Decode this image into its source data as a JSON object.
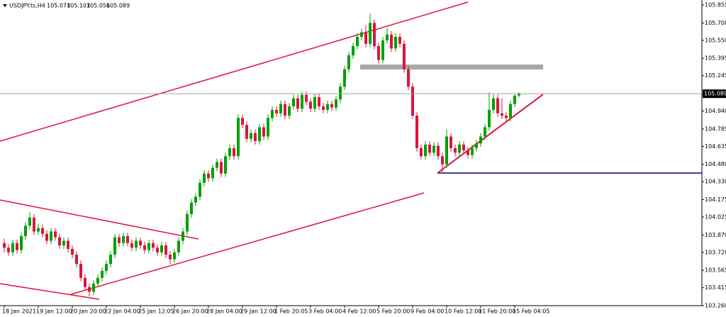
{
  "chart_data": {
    "type": "candlestick",
    "symbol": "USDJPY.ts,H4",
    "up_color": "#00a000",
    "down_color": "#dc143c",
    "price_line_color": "#a0a0a0",
    "ylim": [
      103.26,
      105.898
    ],
    "yticks": [
      105.855,
      {
        "value": 105.7,
        "label": "105.700"
      },
      {
        "value": 105.55,
        "label": "105.550"
      },
      105.395,
      105.245,
      {
        "value": 104.94,
        "label": "104.940"
      },
      104.785,
      104.635,
      {
        "value": 104.48,
        "label": "104.480"
      },
      {
        "value": 104.33,
        "label": "104.330"
      },
      104.175,
      104.025,
      {
        "value": 103.87,
        "label": "103.870"
      },
      {
        "value": 103.72,
        "label": "103.720"
      },
      103.565,
      103.415,
      {
        "value": 103.26,
        "label": "103.260"
      }
    ],
    "categories": [
      "18 Jan 2021",
      null,
      null,
      null,
      null,
      null,
      null,
      null,
      "19 Jan 12:00",
      null,
      null,
      null,
      null,
      null,
      null,
      null,
      "20 Jan 20:00",
      null,
      null,
      null,
      null,
      null,
      null,
      null,
      "22 Jan 04:00",
      null,
      null,
      null,
      null,
      null,
      null,
      null,
      "25 Jan 12:05",
      null,
      null,
      null,
      null,
      null,
      null,
      null,
      "26 Jan 20:00",
      null,
      null,
      null,
      null,
      null,
      null,
      null,
      "28 Jan 04:00",
      null,
      null,
      null,
      null,
      null,
      null,
      null,
      "29 Jan 12:00",
      null,
      null,
      null,
      null,
      null,
      null,
      null,
      "1 Feb 20:05",
      null,
      null,
      null,
      null,
      null,
      null,
      null,
      "3 Feb 04:00",
      null,
      null,
      null,
      null,
      null,
      null,
      null,
      "4 Feb 12:00",
      null,
      null,
      null,
      null,
      null,
      null,
      null,
      "5 Feb 20:00",
      null,
      null,
      null,
      null,
      null,
      null,
      null,
      "9 Feb 04:00",
      null,
      null,
      null,
      null,
      null,
      null,
      null,
      "10 Feb 12:00",
      null,
      null,
      null,
      null,
      null,
      null,
      null,
      "11 Feb 20:00",
      null,
      null,
      null,
      null,
      null,
      null,
      null,
      "15 Feb 04:05",
      null
    ],
    "ohlc": [
      [
        103.8,
        103.84,
        103.72,
        103.76
      ],
      [
        103.76,
        103.79,
        103.69,
        103.72
      ],
      [
        103.72,
        103.83,
        103.69,
        103.8
      ],
      [
        103.8,
        103.83,
        103.71,
        103.74
      ],
      [
        103.74,
        103.89,
        103.71,
        103.86
      ],
      [
        103.86,
        103.98,
        103.83,
        103.95
      ],
      [
        103.95,
        104.07,
        103.92,
        104.02
      ],
      [
        104.02,
        104.05,
        103.87,
        103.9
      ],
      [
        103.9,
        103.97,
        103.87,
        103.93
      ],
      [
        103.93,
        103.96,
        103.85,
        103.88
      ],
      [
        103.88,
        103.91,
        103.79,
        103.82
      ],
      [
        103.82,
        103.93,
        103.79,
        103.9
      ],
      [
        103.9,
        103.93,
        103.82,
        103.85
      ],
      [
        103.85,
        103.88,
        103.75,
        103.78
      ],
      [
        103.78,
        103.85,
        103.75,
        103.82
      ],
      [
        103.82,
        103.85,
        103.72,
        103.75
      ],
      [
        103.75,
        103.78,
        103.67,
        103.7
      ],
      [
        103.7,
        103.73,
        103.59,
        103.62
      ],
      [
        103.62,
        103.65,
        103.47,
        103.5
      ],
      [
        103.5,
        103.53,
        103.39,
        103.42
      ],
      [
        103.42,
        103.45,
        103.34,
        103.38
      ],
      [
        103.38,
        103.48,
        103.35,
        103.45
      ],
      [
        103.45,
        103.53,
        103.42,
        103.5
      ],
      [
        103.5,
        103.59,
        103.47,
        103.56
      ],
      [
        103.56,
        103.65,
        103.53,
        103.62
      ],
      [
        103.62,
        103.73,
        103.59,
        103.7
      ],
      [
        103.7,
        103.88,
        103.67,
        103.85
      ],
      [
        103.85,
        103.88,
        103.77,
        103.8
      ],
      [
        103.8,
        103.89,
        103.77,
        103.86
      ],
      [
        103.86,
        103.89,
        103.77,
        103.8
      ],
      [
        103.8,
        103.83,
        103.73,
        103.76
      ],
      [
        103.76,
        103.85,
        103.73,
        103.82
      ],
      [
        103.82,
        103.85,
        103.75,
        103.78
      ],
      [
        103.78,
        103.81,
        103.71,
        103.74
      ],
      [
        103.74,
        103.83,
        103.71,
        103.8
      ],
      [
        103.8,
        103.83,
        103.73,
        103.76
      ],
      [
        103.76,
        103.79,
        103.69,
        103.72
      ],
      [
        103.72,
        103.81,
        103.69,
        103.78
      ],
      [
        103.78,
        103.81,
        103.67,
        103.7
      ],
      [
        103.7,
        103.73,
        103.62,
        103.66
      ],
      [
        103.66,
        103.75,
        103.63,
        103.72
      ],
      [
        103.72,
        103.85,
        103.69,
        103.82
      ],
      [
        103.82,
        103.93,
        103.79,
        103.9
      ],
      [
        103.9,
        104.08,
        103.87,
        104.05
      ],
      [
        104.05,
        104.18,
        104.02,
        104.15
      ],
      [
        104.15,
        104.23,
        104.12,
        104.2
      ],
      [
        104.2,
        104.35,
        104.17,
        104.32
      ],
      [
        104.32,
        104.43,
        104.29,
        104.4
      ],
      [
        104.4,
        104.43,
        104.33,
        104.36
      ],
      [
        104.36,
        104.48,
        104.33,
        104.45
      ],
      [
        104.45,
        104.53,
        104.42,
        104.5
      ],
      [
        104.5,
        104.53,
        104.37,
        104.4
      ],
      [
        104.4,
        104.58,
        104.37,
        104.55
      ],
      [
        104.55,
        104.65,
        104.52,
        104.62
      ],
      [
        104.62,
        104.65,
        104.52,
        104.55
      ],
      [
        104.55,
        104.91,
        104.52,
        104.88
      ],
      [
        104.88,
        104.91,
        104.79,
        104.82
      ],
      [
        104.82,
        104.85,
        104.67,
        104.7
      ],
      [
        104.7,
        104.78,
        104.67,
        104.75
      ],
      [
        104.75,
        104.78,
        104.65,
        104.68
      ],
      [
        104.68,
        104.83,
        104.65,
        104.8
      ],
      [
        104.8,
        104.83,
        104.69,
        104.72
      ],
      [
        104.72,
        104.91,
        104.69,
        104.88
      ],
      [
        104.88,
        104.98,
        104.85,
        104.95
      ],
      [
        104.95,
        104.98,
        104.89,
        104.92
      ],
      [
        104.92,
        105.03,
        104.89,
        105.0
      ],
      [
        105.0,
        105.03,
        104.87,
        104.9
      ],
      [
        104.9,
        105.01,
        104.87,
        104.98
      ],
      [
        104.98,
        105.08,
        104.95,
        105.05
      ],
      [
        105.05,
        105.08,
        104.93,
        104.96
      ],
      [
        104.96,
        105.11,
        104.93,
        105.08
      ],
      [
        105.08,
        105.11,
        104.99,
        105.02
      ],
      [
        105.02,
        105.05,
        104.93,
        104.96
      ],
      [
        104.96,
        105.09,
        104.93,
        105.06
      ],
      [
        105.06,
        105.09,
        104.95,
        104.98
      ],
      [
        104.98,
        105.01,
        104.92,
        104.95
      ],
      [
        104.95,
        105.03,
        104.92,
        105.0
      ],
      [
        105.0,
        105.03,
        104.94,
        104.97
      ],
      [
        104.97,
        105.07,
        104.94,
        105.04
      ],
      [
        105.04,
        105.18,
        105.01,
        105.15
      ],
      [
        105.15,
        105.33,
        105.12,
        105.3
      ],
      [
        105.3,
        105.45,
        105.27,
        105.42
      ],
      [
        105.42,
        105.53,
        105.39,
        105.5
      ],
      [
        105.5,
        105.61,
        105.47,
        105.58
      ],
      [
        105.58,
        105.65,
        105.55,
        105.62
      ],
      [
        105.62,
        105.68,
        105.49,
        105.52
      ],
      [
        105.52,
        105.78,
        105.49,
        105.7
      ],
      [
        105.7,
        105.73,
        105.47,
        105.5
      ],
      [
        105.5,
        105.53,
        105.35,
        105.38
      ],
      [
        105.38,
        105.58,
        105.35,
        105.55
      ],
      [
        105.55,
        105.66,
        105.52,
        105.6
      ],
      [
        105.6,
        105.63,
        105.45,
        105.48
      ],
      [
        105.48,
        105.61,
        105.45,
        105.58
      ],
      [
        105.58,
        105.61,
        105.49,
        105.52
      ],
      [
        105.52,
        105.55,
        105.27,
        105.3
      ],
      [
        105.3,
        105.33,
        105.12,
        105.15
      ],
      [
        105.15,
        105.18,
        104.87,
        104.9
      ],
      [
        104.9,
        104.93,
        104.59,
        104.62
      ],
      [
        104.62,
        104.65,
        104.52,
        104.55
      ],
      [
        104.55,
        104.68,
        104.52,
        104.65
      ],
      [
        104.65,
        104.68,
        104.55,
        104.58
      ],
      [
        104.58,
        104.67,
        104.55,
        104.64
      ],
      [
        104.64,
        104.67,
        104.52,
        104.55
      ],
      [
        104.55,
        104.58,
        104.4,
        104.48
      ],
      [
        104.48,
        104.78,
        104.45,
        104.72
      ],
      [
        104.72,
        104.75,
        104.59,
        104.62
      ],
      [
        104.62,
        104.65,
        104.55,
        104.58
      ],
      [
        104.58,
        104.68,
        104.55,
        104.65
      ],
      [
        104.65,
        104.68,
        104.57,
        104.6
      ],
      [
        104.6,
        104.63,
        104.53,
        104.56
      ],
      [
        104.56,
        104.65,
        104.53,
        104.62
      ],
      [
        104.62,
        104.69,
        104.59,
        104.66
      ],
      [
        104.66,
        104.75,
        104.63,
        104.72
      ],
      [
        104.72,
        104.83,
        104.69,
        104.8
      ],
      [
        104.8,
        105.1,
        104.77,
        104.95
      ],
      [
        104.95,
        105.08,
        104.92,
        105.05
      ],
      [
        105.05,
        105.08,
        104.89,
        104.92
      ],
      [
        104.92,
        105.05,
        104.87,
        104.9
      ],
      [
        104.9,
        104.93,
        104.85,
        104.88
      ],
      [
        104.88,
        105.03,
        104.85,
        105.0
      ],
      [
        105.0,
        105.08,
        104.97,
        105.073
      ],
      [
        105.073,
        105.103,
        105.056,
        105.089
      ]
    ]
  }
}
